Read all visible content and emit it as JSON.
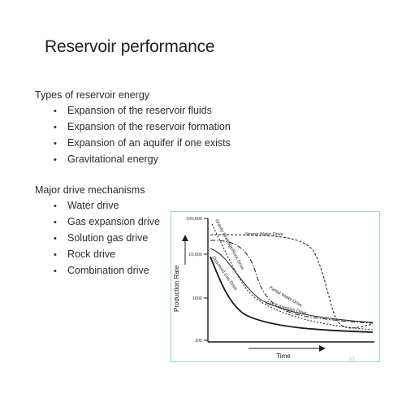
{
  "slide": {
    "title": "Reservoir performance",
    "energy_heading": "Types of reservoir energy",
    "energy_items": [
      "Expansion of the reservoir fluids",
      "Expansion of the reservoir formation",
      "Expansion of an aquifer if one exists",
      "Gravitational energy"
    ],
    "drive_heading": "Major drive mechanisms",
    "drive_items": [
      "Water drive",
      "Gas expansion drive",
      "Solution gas drive",
      "Rock drive",
      "Combination drive"
    ],
    "page_number": "63"
  },
  "figure": {
    "ylabel": "Production Rate",
    "xlabel": "Time",
    "yticks": [
      "100,000",
      "10,000",
      "1000",
      "100"
    ],
    "curve_labels": {
      "strong_water": "Strong Water Drive",
      "gravity": "Gravity Drainage/Rock Drive",
      "dissolved_gas": "Dissolved Gas Drive",
      "partial_water": "Partial Water Drive",
      "gas_expansion": "Gas Expansion Drive"
    },
    "colors": {
      "frame": "#9fd3b3",
      "ink": "#1a1a1a"
    }
  }
}
